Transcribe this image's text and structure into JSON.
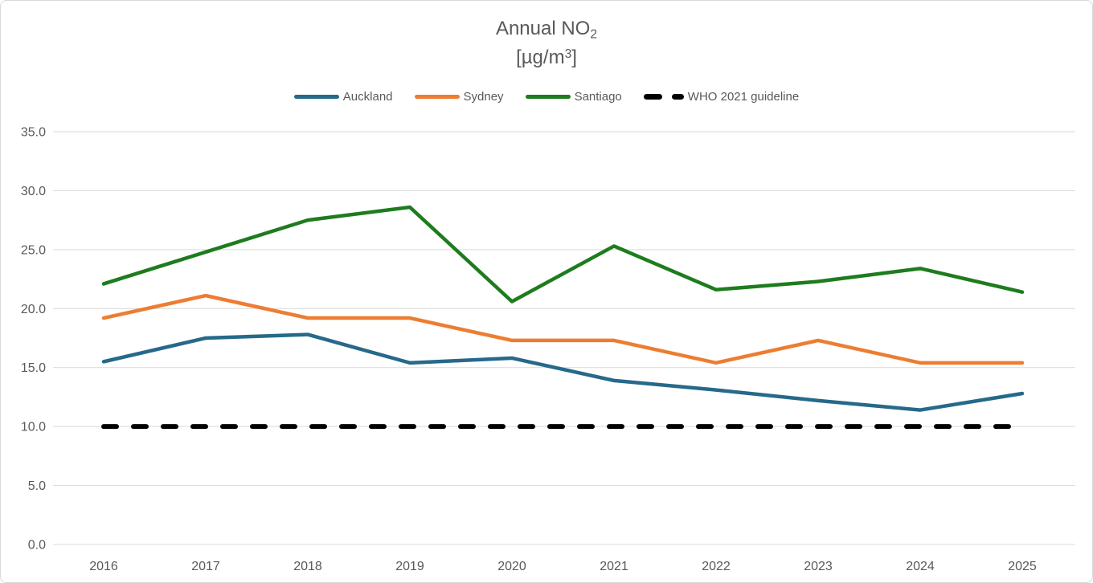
{
  "header": {
    "title_line1": {
      "text": "Annual NO",
      "subscript": "2"
    },
    "title_line2": {
      "open": "[µg/m",
      "superscript": "3",
      "close": "]"
    }
  },
  "legend": {
    "items": [
      {
        "label": "Auckland"
      },
      {
        "label": "Sydney"
      },
      {
        "label": "Santiago"
      },
      {
        "label": "WHO 2021 guideline"
      }
    ]
  },
  "chart_data": {
    "type": "line",
    "title": "Annual NO₂ [µg/m³]",
    "categories": [
      "2016",
      "2017",
      "2018",
      "2019",
      "2020",
      "2021",
      "2022",
      "2023",
      "2024",
      "2025"
    ],
    "series": [
      {
        "name": "Auckland",
        "color": "#26698A",
        "values": [
          15.5,
          17.5,
          17.8,
          15.4,
          15.8,
          13.9,
          13.1,
          12.2,
          11.4,
          12.8
        ]
      },
      {
        "name": "Sydney",
        "color": "#ED7D31",
        "values": [
          19.2,
          21.1,
          19.2,
          19.2,
          17.3,
          17.3,
          15.4,
          17.3,
          15.4,
          15.4
        ]
      },
      {
        "name": "Santiago",
        "color": "#1E7C1E",
        "values": [
          22.1,
          24.8,
          27.5,
          28.6,
          20.6,
          25.3,
          21.6,
          22.3,
          23.4,
          21.4
        ]
      }
    ],
    "guideline": {
      "name": "WHO 2021 guideline",
      "value": 10.0,
      "color": "#000000",
      "style": "dashed"
    },
    "ylim": [
      0,
      35
    ],
    "y_tick_step": 5,
    "y_tick_labels": [
      "0.0",
      "5.0",
      "10.0",
      "15.0",
      "20.0",
      "25.0",
      "30.0",
      "35.0"
    ],
    "grid": "horizontal-only",
    "legend_position": "top-center",
    "colors": {
      "grid": "#d9d9d9",
      "tick_text": "#595959",
      "title_text": "#595959",
      "background": "#ffffff"
    }
  }
}
